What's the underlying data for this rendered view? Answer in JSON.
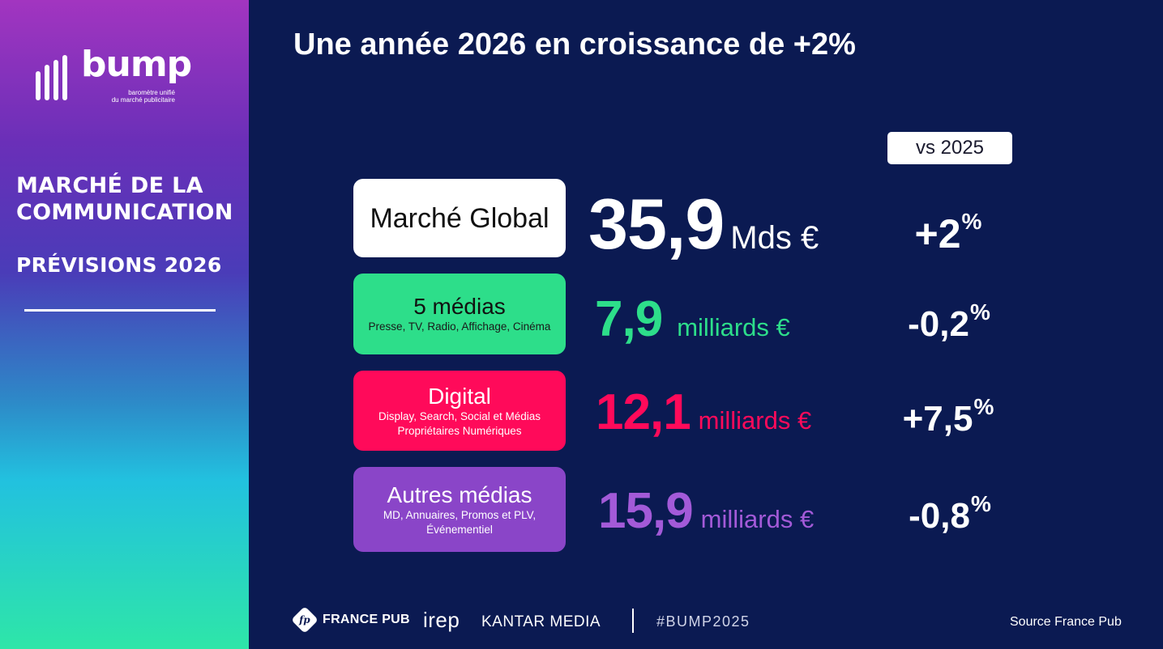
{
  "brand": {
    "logo_word": "bump",
    "logo_tagline": "baromètre unifié\ndu marché publicitaire",
    "logo_icon": "bars-icon"
  },
  "sidebar": {
    "title": "MARCHÉ DE LA\nCOMMUNICATION",
    "subtitle": "PRÉVISIONS 2026"
  },
  "headline": "Une année 2026 en croissance de +2%",
  "comparison_label": "vs 2025",
  "rows": [
    {
      "label": "Marché Global",
      "sublabel": "",
      "value": "35,9",
      "unit": "Mds €",
      "change": "+2",
      "change_unit": "%",
      "color": "#ffffff"
    },
    {
      "label": "5 médias",
      "sublabel": "Presse, TV, Radio, Affichage, Cinéma",
      "value": "7,9",
      "unit": "milliards €",
      "change": "-0,2",
      "change_unit": "%",
      "color": "#2dde8a"
    },
    {
      "label": "Digital",
      "sublabel": "Display, Search, Social et Médias\nPropriétaires Numériques",
      "value": "12,1",
      "unit": "milliards €",
      "change": "+7,5",
      "change_unit": "%",
      "color": "#ff0a5a"
    },
    {
      "label": "Autres médias",
      "sublabel": "MD, Annuaires, Promos et PLV,\nÉvénementiel",
      "value": "15,9",
      "unit": "milliards €",
      "change": "-0,8",
      "change_unit": "%",
      "color": "#8a45c8"
    }
  ],
  "footer": {
    "partner_1": "FRANCE PUB",
    "partner_1_icon_text": "fp",
    "partner_2": "irep",
    "partner_3": "KANTAR MEDIA",
    "hashtag": "#BUMP2025",
    "source": "Source France Pub"
  }
}
